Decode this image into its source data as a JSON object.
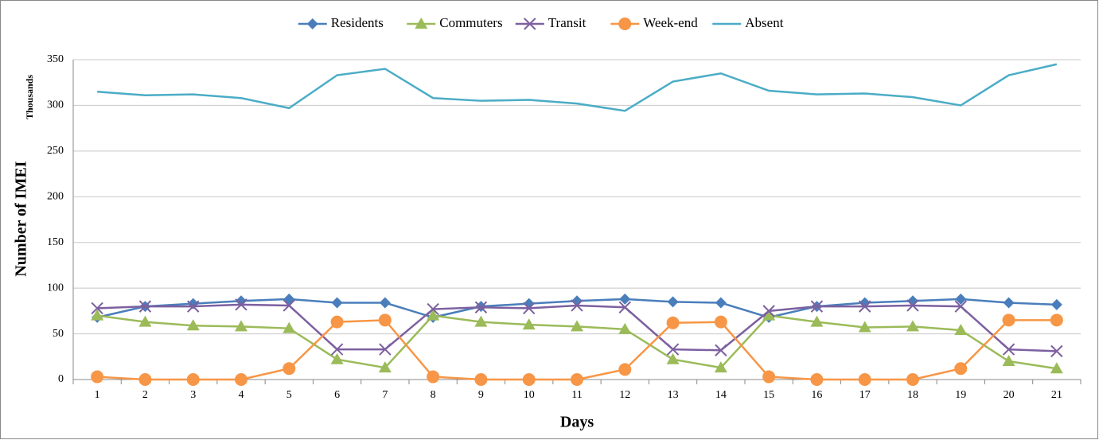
{
  "chart_data": {
    "type": "line",
    "categories": [
      "1",
      "2",
      "3",
      "4",
      "5",
      "6",
      "7",
      "8",
      "9",
      "10",
      "11",
      "12",
      "13",
      "14",
      "15",
      "16",
      "17",
      "18",
      "19",
      "20",
      "21"
    ],
    "x_label": "Days",
    "y_label": "Number of IMEI",
    "y_unit": "Thousands",
    "ylim": [
      0,
      350
    ],
    "yticks": [
      0,
      50,
      100,
      150,
      200,
      250,
      300,
      350
    ],
    "grid": true,
    "legend": "top",
    "series": [
      {
        "name": "Residents",
        "color": "#4a7ebb",
        "marker": "diamond",
        "values": [
          68,
          80,
          83,
          86,
          88,
          84,
          84,
          68,
          80,
          83,
          86,
          88,
          85,
          84,
          68,
          80,
          84,
          86,
          88,
          84,
          82
        ]
      },
      {
        "name": "Commuters",
        "color": "#9bbb59",
        "marker": "triangle",
        "values": [
          70,
          63,
          59,
          58,
          56,
          22,
          13,
          70,
          63,
          60,
          58,
          55,
          22,
          13,
          70,
          63,
          57,
          58,
          54,
          20,
          12
        ]
      },
      {
        "name": "Transit",
        "color": "#7d60a0",
        "marker": "cross",
        "values": [
          78,
          80,
          80,
          82,
          81,
          33,
          33,
          77,
          79,
          78,
          81,
          79,
          33,
          32,
          75,
          80,
          80,
          81,
          80,
          33,
          31
        ]
      },
      {
        "name": "Week-end",
        "color": "#f79646",
        "marker": "circle",
        "values": [
          3,
          0,
          0,
          0,
          12,
          63,
          65,
          3,
          0,
          0,
          0,
          11,
          62,
          63,
          3,
          0,
          0,
          0,
          12,
          65,
          65
        ]
      },
      {
        "name": "Absent",
        "color": "#4bacc6",
        "marker": "none",
        "values": [
          315,
          311,
          312,
          308,
          297,
          333,
          340,
          308,
          305,
          306,
          302,
          294,
          326,
          335,
          316,
          312,
          313,
          309,
          300,
          333,
          345
        ]
      }
    ]
  }
}
